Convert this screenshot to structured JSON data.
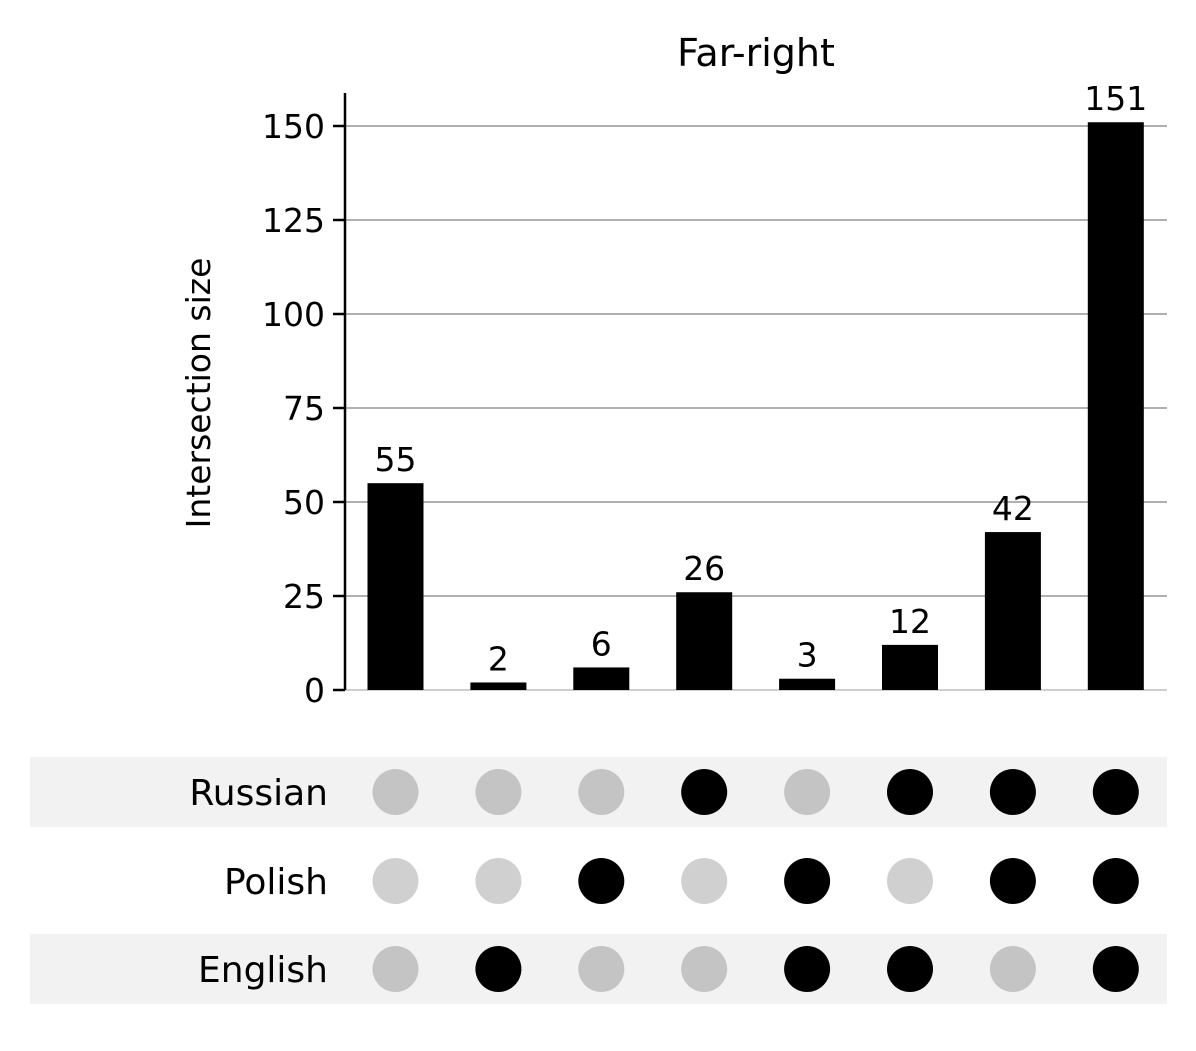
{
  "chart_data": {
    "type": "bar",
    "title": "Far-right",
    "ylabel": "Intersection size",
    "ylim": [
      0,
      158
    ],
    "yticks": [
      0,
      25,
      50,
      75,
      100,
      125,
      150
    ],
    "ytick_labels": [
      "0",
      "25",
      "50",
      "75",
      "100",
      "125",
      "150"
    ],
    "grid": true,
    "values": [
      55,
      2,
      6,
      26,
      3,
      12,
      42,
      151
    ],
    "value_labels": [
      "55",
      "2",
      "6",
      "26",
      "3",
      "12",
      "42",
      "151"
    ],
    "sets": [
      "Russian",
      "Polish",
      "English"
    ],
    "membership": [
      [
        false,
        false,
        false,
        true,
        false,
        true,
        true,
        true
      ],
      [
        false,
        false,
        true,
        false,
        true,
        false,
        true,
        true
      ],
      [
        false,
        true,
        false,
        false,
        true,
        true,
        false,
        true
      ]
    ]
  },
  "colors": {
    "bar": "#000000",
    "dot_active": "#000000",
    "dot_inactive_shaded_row": "#c4c4c4",
    "dot_inactive_plain_row": "#d0d0d0",
    "row_shade": "#f2f2f2",
    "grid": "#b0b0b0",
    "axis": "#000000"
  }
}
